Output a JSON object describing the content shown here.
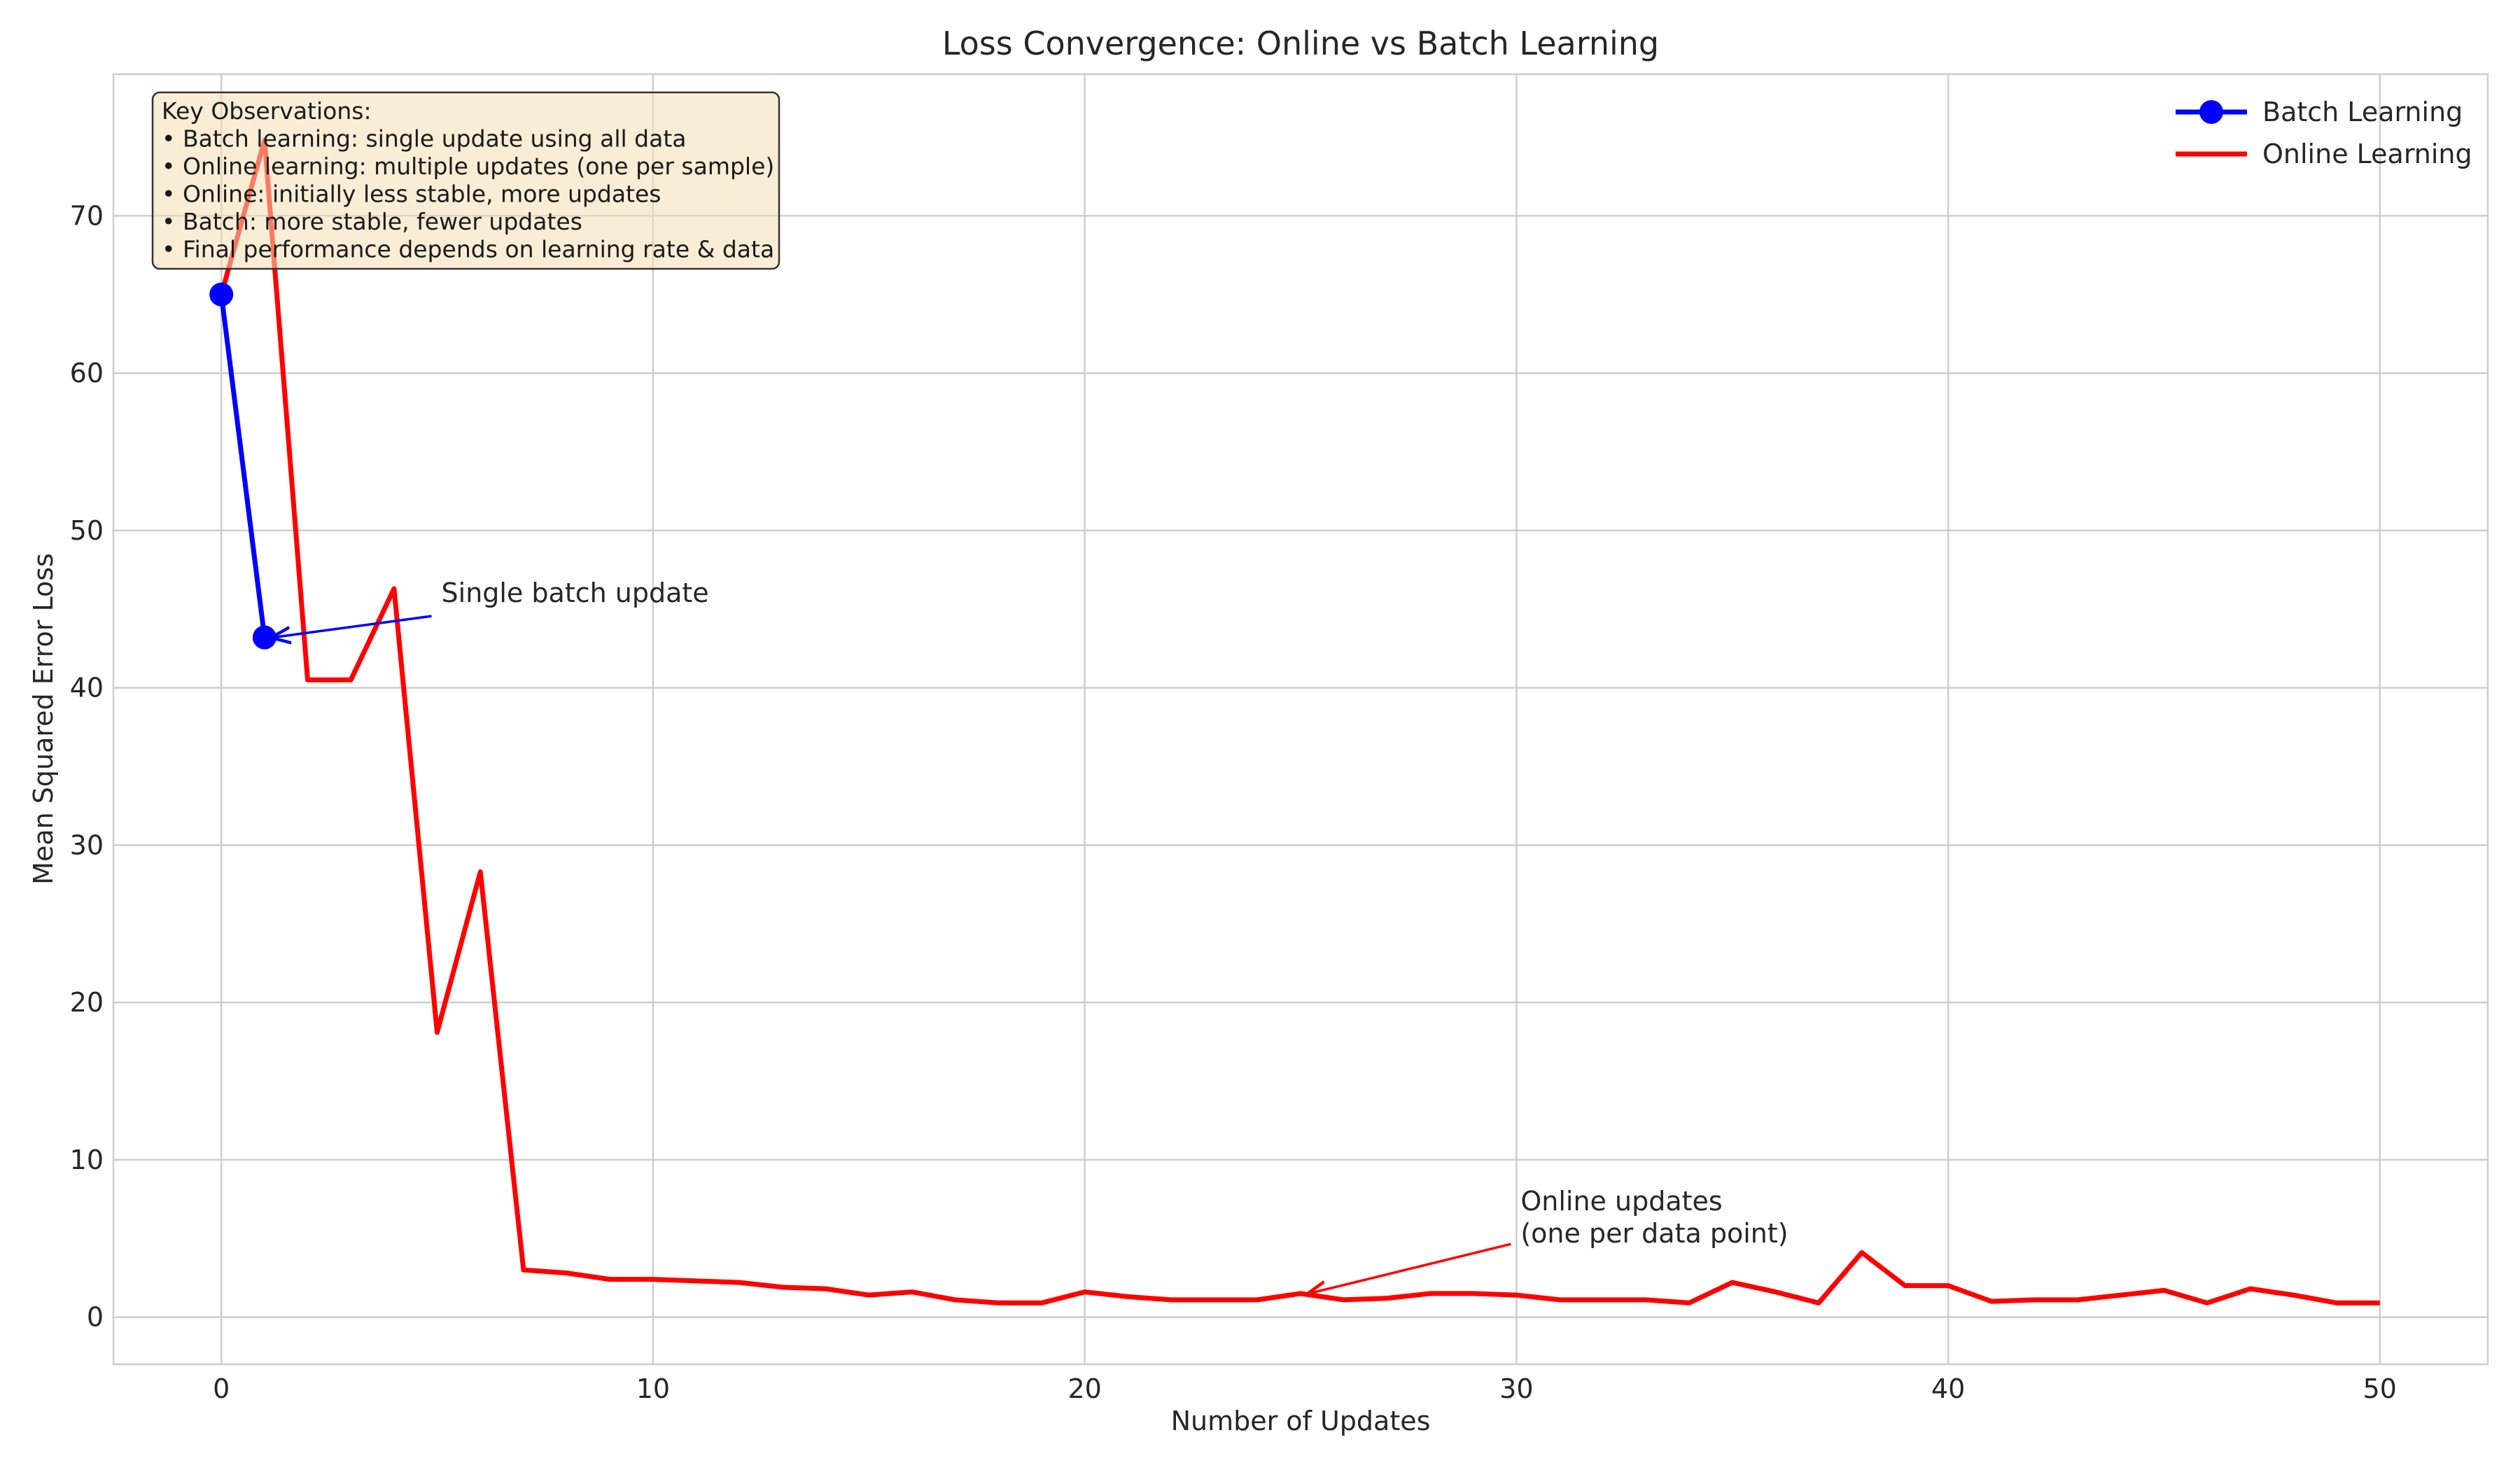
{
  "chart_data": {
    "type": "line",
    "title": "Loss Convergence: Online vs Batch Learning",
    "xlabel": "Number of Updates",
    "ylabel": "Mean Squared Error Loss",
    "xlim": [
      -2.5,
      52.5
    ],
    "ylim": [
      -3,
      79
    ],
    "xticks": [
      0,
      10,
      20,
      30,
      40,
      50
    ],
    "yticks": [
      0,
      10,
      20,
      30,
      40,
      50,
      60,
      70
    ],
    "grid": true,
    "legend_position": "top-right",
    "series": [
      {
        "name": "Batch Learning",
        "color": "#0000ff",
        "marker": "circle",
        "x": [
          0,
          1
        ],
        "values": [
          65.0,
          43.2
        ]
      },
      {
        "name": "Online Learning",
        "color": "#ff0000",
        "marker": "none",
        "x": [
          0,
          1,
          2,
          3,
          4,
          5,
          6,
          7,
          8,
          9,
          10,
          11,
          12,
          13,
          14,
          15,
          16,
          17,
          18,
          19,
          20,
          21,
          22,
          23,
          24,
          25,
          26,
          27,
          28,
          29,
          30,
          31,
          32,
          33,
          34,
          35,
          36,
          37,
          38,
          39,
          40,
          41,
          42,
          43,
          44,
          45,
          46,
          47,
          48,
          49,
          50
        ],
        "values": [
          65.0,
          74.8,
          40.5,
          40.5,
          46.3,
          18.1,
          28.3,
          3.0,
          2.8,
          2.4,
          2.4,
          2.3,
          2.2,
          1.9,
          1.8,
          1.4,
          1.6,
          1.1,
          0.9,
          0.9,
          1.6,
          1.3,
          1.1,
          1.1,
          1.1,
          1.5,
          1.1,
          1.2,
          1.5,
          1.5,
          1.4,
          1.1,
          1.1,
          1.1,
          0.9,
          2.2,
          1.6,
          0.9,
          4.1,
          2.0,
          2.0,
          1.0,
          1.1,
          1.1,
          1.4,
          1.7,
          0.9,
          1.8,
          1.4,
          0.9,
          0.9
        ]
      }
    ],
    "annotations": [
      {
        "id": "batch",
        "text": "Single batch update",
        "xy": [
          1,
          43.2
        ],
        "xytext": [
          5,
          45
        ],
        "color": "#0000ff"
      },
      {
        "id": "online",
        "text": "Online updates\n(one per data point)",
        "xy": [
          25,
          1.5
        ],
        "xytext": [
          30,
          5
        ],
        "color": "#ff0000"
      }
    ],
    "info_box": {
      "lines": [
        "Key Observations:",
        "• Batch learning: single update using all data",
        "• Online learning: multiple updates (one per sample)",
        "• Online: initially less stable, more updates",
        "• Batch: more stable, fewer updates",
        "• Final performance depends on learning rate & data"
      ],
      "background": "#f5deb3"
    }
  }
}
